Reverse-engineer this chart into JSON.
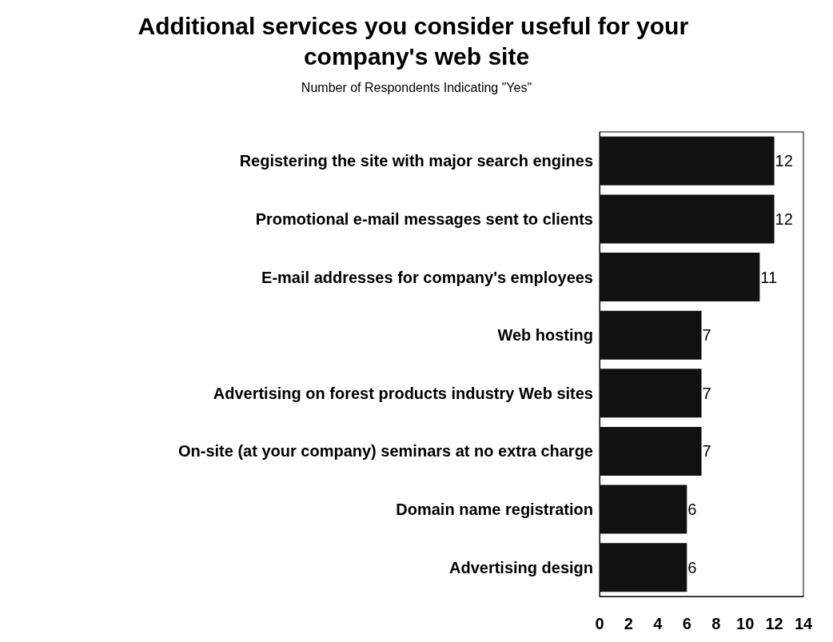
{
  "chart_data": {
    "type": "bar",
    "orientation": "horizontal",
    "title": "Additional services you consider useful for your company's web site",
    "subtitle": "Number of Respondents Indicating \"Yes\"",
    "categories": [
      "Registering the site with major search engines",
      "Promotional e-mail messages sent to clients",
      "E-mail addresses for company's employees",
      "Web hosting",
      "Advertising on forest products industry Web sites",
      "On-site (at your company) seminars at no extra charge",
      "Domain name registration",
      "Advertising design"
    ],
    "values": [
      12,
      12,
      11,
      7,
      7,
      7,
      6,
      6
    ],
    "color": "#111111",
    "data_labels": true,
    "xlim": [
      0,
      14
    ],
    "xticks": [
      0,
      2,
      4,
      6,
      8,
      10,
      12,
      14
    ],
    "grid": false
  }
}
